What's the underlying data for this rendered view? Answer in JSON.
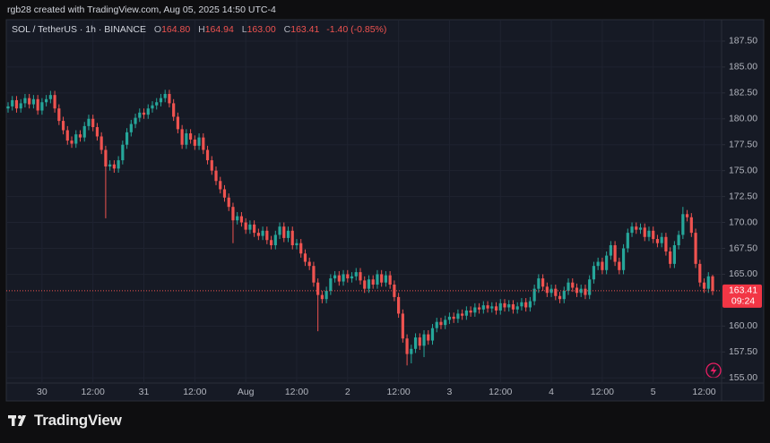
{
  "header": {
    "caption": "rgb28 created with TradingView.com, Aug 05, 2025 14:50 UTC-4"
  },
  "footer": {
    "brand": "TradingView"
  },
  "chart_data": {
    "type": "candlestick",
    "legend": {
      "symbol": "SOL / TetherUS · 1h · BINANCE",
      "items": [
        {
          "key": "O",
          "value": "164.80"
        },
        {
          "key": "H",
          "value": "164.94"
        },
        {
          "key": "L",
          "value": "163.00"
        },
        {
          "key": "C",
          "value": "163.41"
        }
      ],
      "change": "-1.40 (-0.85%)"
    },
    "countdown": "09:24",
    "up_color": "#26a69a",
    "down_color": "#ef5350",
    "grid": true,
    "ylim": [
      154.5,
      189.05
    ],
    "yticks": [
      {
        "value": 155,
        "label": "155.00"
      },
      {
        "value": 157.5,
        "label": "157.50"
      },
      {
        "value": 160,
        "label": "160.00"
      },
      {
        "value": 162.5,
        "label": "162.50"
      },
      {
        "value": 165,
        "label": "165.00"
      },
      {
        "value": 167.5,
        "label": "167.50"
      },
      {
        "value": 170,
        "label": "170.00"
      },
      {
        "value": 172.5,
        "label": "172.50"
      },
      {
        "value": 175,
        "label": "175.00"
      },
      {
        "value": 177.5,
        "label": "177.50"
      },
      {
        "value": 180,
        "label": "180.00"
      },
      {
        "value": 182.5,
        "label": "182.50"
      },
      {
        "value": 185,
        "label": "185.00"
      },
      {
        "value": 187.5,
        "label": "187.50"
      }
    ],
    "categories": [
      null,
      null,
      null,
      null,
      null,
      null,
      null,
      null,
      "30",
      null,
      null,
      null,
      null,
      null,
      null,
      null,
      null,
      null,
      null,
      null,
      "12:00",
      null,
      null,
      null,
      null,
      null,
      null,
      null,
      null,
      null,
      null,
      null,
      "31",
      null,
      null,
      null,
      null,
      null,
      null,
      null,
      null,
      null,
      null,
      null,
      "12:00",
      null,
      null,
      null,
      null,
      null,
      null,
      null,
      null,
      null,
      null,
      null,
      "Aug",
      null,
      null,
      null,
      null,
      null,
      null,
      null,
      null,
      null,
      null,
      null,
      "12:00",
      null,
      null,
      null,
      null,
      null,
      null,
      null,
      null,
      null,
      null,
      null,
      "2",
      null,
      null,
      null,
      null,
      null,
      null,
      null,
      null,
      null,
      null,
      null,
      "12:00",
      null,
      null,
      null,
      null,
      null,
      null,
      null,
      null,
      null,
      null,
      null,
      "3",
      null,
      null,
      null,
      null,
      null,
      null,
      null,
      null,
      null,
      null,
      null,
      "12:00",
      null,
      null,
      null,
      null,
      null,
      null,
      null,
      null,
      null,
      null,
      null,
      "4",
      null,
      null,
      null,
      null,
      null,
      null,
      null,
      null,
      null,
      null,
      null,
      "12:00",
      null,
      null,
      null,
      null,
      null,
      null,
      null,
      null,
      null,
      null,
      null,
      "5",
      null,
      null,
      null,
      null,
      null,
      null,
      null,
      null,
      null,
      null,
      null,
      "12:00",
      null,
      null
    ],
    "values": [
      [
        181.0,
        181.6,
        180.6,
        181.2
      ],
      [
        181.2,
        182.2,
        180.8,
        181.8
      ],
      [
        181.8,
        182.2,
        180.6,
        181.0
      ],
      [
        181.0,
        181.9,
        180.6,
        181.5
      ],
      [
        181.5,
        182.4,
        181.1,
        182.0
      ],
      [
        182.0,
        182.4,
        181.0,
        181.4
      ],
      [
        181.4,
        182.3,
        181.0,
        181.9
      ],
      [
        181.9,
        182.3,
        180.4,
        180.8
      ],
      [
        180.8,
        182.0,
        180.4,
        181.6
      ],
      [
        181.6,
        182.3,
        181.2,
        181.9
      ],
      [
        181.9,
        182.7,
        181.5,
        182.3
      ],
      [
        182.3,
        182.7,
        180.6,
        181.0
      ],
      [
        181.0,
        181.4,
        179.4,
        179.8
      ],
      [
        179.8,
        180.2,
        178.5,
        178.9
      ],
      [
        178.9,
        179.3,
        177.5,
        177.9
      ],
      [
        177.9,
        178.3,
        177.2,
        177.6
      ],
      [
        177.6,
        178.9,
        177.2,
        178.5
      ],
      [
        178.5,
        178.9,
        177.8,
        178.2
      ],
      [
        178.2,
        179.7,
        177.8,
        179.3
      ],
      [
        179.3,
        180.4,
        178.9,
        180.0
      ],
      [
        180.0,
        180.4,
        178.8,
        179.2
      ],
      [
        179.2,
        179.6,
        177.9,
        178.3
      ],
      [
        178.3,
        178.7,
        176.6,
        177.0
      ],
      [
        177.0,
        177.4,
        170.4,
        175.4
      ],
      [
        175.4,
        176.0,
        175.0,
        175.6
      ],
      [
        175.6,
        176.0,
        174.8,
        175.2
      ],
      [
        175.2,
        176.4,
        174.8,
        176.0
      ],
      [
        176.0,
        177.9,
        175.6,
        177.5
      ],
      [
        177.5,
        179.1,
        177.1,
        178.7
      ],
      [
        178.7,
        179.9,
        178.3,
        179.5
      ],
      [
        179.5,
        180.5,
        179.1,
        180.1
      ],
      [
        180.1,
        181.0,
        179.7,
        180.6
      ],
      [
        180.6,
        181.0,
        180.0,
        180.4
      ],
      [
        180.4,
        181.4,
        180.0,
        181.0
      ],
      [
        181.0,
        181.7,
        180.6,
        181.3
      ],
      [
        181.3,
        182.0,
        180.9,
        181.6
      ],
      [
        181.6,
        182.4,
        181.2,
        182.0
      ],
      [
        182.0,
        182.8,
        181.6,
        182.4
      ],
      [
        182.4,
        182.8,
        181.1,
        181.5
      ],
      [
        181.5,
        181.9,
        179.8,
        180.2
      ],
      [
        180.2,
        180.6,
        178.6,
        179.0
      ],
      [
        179.0,
        179.4,
        177.1,
        177.5
      ],
      [
        177.5,
        179.0,
        177.1,
        178.6
      ],
      [
        178.6,
        179.0,
        177.6,
        178.0
      ],
      [
        178.0,
        178.4,
        177.0,
        177.4
      ],
      [
        177.4,
        178.6,
        177.0,
        178.2
      ],
      [
        178.2,
        178.6,
        176.6,
        177.0
      ],
      [
        177.0,
        177.4,
        175.6,
        176.0
      ],
      [
        176.0,
        176.4,
        174.6,
        175.0
      ],
      [
        175.0,
        175.4,
        173.6,
        174.0
      ],
      [
        174.0,
        174.4,
        172.8,
        173.2
      ],
      [
        173.2,
        173.6,
        172.0,
        172.4
      ],
      [
        172.4,
        172.8,
        171.1,
        171.5
      ],
      [
        171.5,
        171.9,
        168.0,
        170.2
      ],
      [
        170.2,
        171.0,
        169.8,
        170.6
      ],
      [
        170.6,
        171.0,
        169.6,
        170.0
      ],
      [
        170.0,
        170.4,
        168.9,
        169.3
      ],
      [
        169.3,
        170.2,
        168.9,
        169.8
      ],
      [
        169.8,
        170.2,
        168.6,
        169.0
      ],
      [
        169.0,
        169.4,
        168.3,
        168.7
      ],
      [
        168.7,
        169.6,
        168.3,
        169.2
      ],
      [
        169.2,
        169.6,
        167.9,
        168.3
      ],
      [
        168.3,
        168.7,
        167.4,
        167.8
      ],
      [
        167.8,
        169.2,
        167.4,
        168.8
      ],
      [
        168.8,
        170.0,
        168.4,
        169.6
      ],
      [
        169.6,
        170.0,
        168.1,
        168.5
      ],
      [
        168.5,
        169.6,
        168.1,
        169.2
      ],
      [
        169.2,
        169.6,
        167.4,
        167.8
      ],
      [
        167.8,
        168.4,
        167.4,
        168.0
      ],
      [
        168.0,
        168.4,
        166.6,
        167.0
      ],
      [
        167.0,
        167.4,
        165.8,
        166.2
      ],
      [
        166.2,
        166.6,
        165.4,
        165.8
      ],
      [
        165.8,
        166.2,
        163.8,
        164.2
      ],
      [
        164.2,
        164.6,
        159.5,
        163.0
      ],
      [
        163.0,
        163.4,
        162.2,
        162.6
      ],
      [
        162.6,
        163.8,
        162.2,
        163.4
      ],
      [
        163.4,
        165.0,
        163.0,
        164.6
      ],
      [
        164.6,
        165.3,
        164.2,
        164.9
      ],
      [
        164.9,
        165.3,
        163.9,
        164.3
      ],
      [
        164.3,
        165.4,
        163.9,
        165.0
      ],
      [
        165.0,
        165.4,
        164.2,
        164.6
      ],
      [
        164.6,
        165.2,
        164.2,
        164.8
      ],
      [
        164.8,
        165.6,
        164.4,
        165.2
      ],
      [
        165.2,
        165.6,
        164.0,
        164.4
      ],
      [
        164.4,
        164.8,
        163.2,
        163.6
      ],
      [
        163.6,
        164.9,
        163.2,
        164.5
      ],
      [
        164.5,
        164.9,
        163.6,
        164.0
      ],
      [
        164.0,
        165.4,
        163.6,
        165.0
      ],
      [
        165.0,
        165.4,
        163.8,
        164.2
      ],
      [
        164.2,
        165.3,
        163.8,
        164.9
      ],
      [
        164.9,
        165.3,
        163.6,
        164.0
      ],
      [
        164.0,
        164.4,
        162.4,
        162.8
      ],
      [
        162.8,
        163.2,
        160.8,
        161.2
      ],
      [
        161.2,
        161.6,
        158.4,
        158.8
      ],
      [
        158.8,
        159.2,
        156.2,
        157.3
      ],
      [
        157.3,
        158.2,
        156.4,
        157.8
      ],
      [
        157.8,
        159.3,
        157.4,
        158.9
      ],
      [
        158.9,
        159.3,
        157.7,
        158.1
      ],
      [
        158.1,
        159.6,
        157.0,
        159.2
      ],
      [
        159.2,
        159.6,
        158.2,
        158.6
      ],
      [
        158.6,
        160.2,
        158.2,
        159.8
      ],
      [
        159.8,
        160.8,
        159.4,
        160.4
      ],
      [
        160.4,
        160.8,
        159.7,
        160.1
      ],
      [
        160.1,
        161.0,
        159.7,
        160.6
      ],
      [
        160.6,
        161.3,
        160.2,
        160.9
      ],
      [
        160.9,
        161.3,
        160.3,
        160.7
      ],
      [
        160.7,
        161.6,
        160.3,
        161.2
      ],
      [
        161.2,
        161.6,
        160.6,
        161.0
      ],
      [
        161.0,
        161.9,
        160.6,
        161.5
      ],
      [
        161.5,
        161.9,
        160.9,
        161.3
      ],
      [
        161.3,
        162.2,
        160.9,
        161.8
      ],
      [
        161.8,
        162.2,
        161.2,
        161.6
      ],
      [
        161.6,
        162.4,
        161.2,
        162.0
      ],
      [
        162.0,
        162.4,
        161.3,
        161.7
      ],
      [
        161.7,
        162.3,
        161.3,
        161.9
      ],
      [
        161.9,
        162.3,
        161.1,
        161.5
      ],
      [
        161.5,
        162.6,
        161.1,
        162.2
      ],
      [
        162.2,
        162.6,
        161.4,
        161.8
      ],
      [
        161.8,
        162.5,
        161.4,
        162.1
      ],
      [
        162.1,
        162.5,
        161.2,
        161.6
      ],
      [
        161.6,
        162.3,
        161.2,
        161.9
      ],
      [
        161.9,
        162.7,
        161.5,
        162.3
      ],
      [
        162.3,
        162.7,
        161.4,
        161.8
      ],
      [
        161.8,
        162.8,
        161.4,
        162.4
      ],
      [
        162.4,
        164.0,
        162.0,
        163.6
      ],
      [
        163.6,
        165.0,
        163.2,
        164.6
      ],
      [
        164.6,
        165.0,
        163.4,
        163.8
      ],
      [
        163.8,
        164.2,
        162.8,
        163.2
      ],
      [
        163.2,
        164.0,
        162.8,
        163.6
      ],
      [
        163.6,
        164.0,
        162.5,
        162.9
      ],
      [
        162.9,
        163.3,
        162.2,
        162.6
      ],
      [
        162.6,
        163.8,
        162.2,
        163.4
      ],
      [
        163.4,
        164.6,
        163.0,
        164.2
      ],
      [
        164.2,
        164.6,
        163.3,
        163.7
      ],
      [
        163.7,
        164.1,
        162.8,
        163.2
      ],
      [
        163.2,
        164.0,
        162.8,
        163.6
      ],
      [
        163.6,
        164.0,
        162.6,
        163.0
      ],
      [
        163.0,
        164.9,
        162.6,
        164.5
      ],
      [
        164.5,
        166.2,
        164.1,
        165.8
      ],
      [
        165.8,
        166.6,
        165.4,
        166.2
      ],
      [
        166.2,
        166.6,
        165.0,
        165.4
      ],
      [
        165.4,
        167.2,
        165.0,
        166.8
      ],
      [
        166.8,
        168.2,
        166.4,
        167.8
      ],
      [
        167.8,
        168.2,
        165.8,
        166.2
      ],
      [
        166.2,
        166.6,
        165.0,
        165.4
      ],
      [
        165.4,
        167.9,
        165.0,
        167.5
      ],
      [
        167.5,
        169.4,
        167.1,
        169.0
      ],
      [
        169.0,
        170.0,
        168.6,
        169.6
      ],
      [
        169.6,
        170.0,
        168.9,
        169.3
      ],
      [
        169.3,
        169.9,
        168.9,
        169.5
      ],
      [
        169.5,
        169.9,
        168.2,
        168.6
      ],
      [
        168.6,
        169.6,
        168.2,
        169.2
      ],
      [
        169.2,
        169.6,
        168.0,
        168.4
      ],
      [
        168.4,
        168.8,
        167.6,
        168.0
      ],
      [
        168.0,
        169.0,
        167.6,
        168.6
      ],
      [
        168.6,
        169.0,
        166.8,
        167.2
      ],
      [
        167.2,
        167.6,
        165.6,
        166.0
      ],
      [
        166.0,
        168.2,
        165.6,
        167.8
      ],
      [
        167.8,
        169.2,
        167.4,
        168.8
      ],
      [
        168.8,
        171.5,
        168.4,
        170.8
      ],
      [
        170.8,
        171.2,
        170.1,
        170.5
      ],
      [
        170.5,
        170.9,
        168.6,
        169.0
      ],
      [
        169.0,
        169.4,
        165.6,
        166.0
      ],
      [
        166.0,
        166.4,
        163.8,
        164.2
      ],
      [
        164.2,
        164.6,
        163.2,
        163.6
      ],
      [
        163.6,
        165.2,
        163.2,
        164.8
      ],
      [
        164.8,
        164.94,
        163.0,
        163.41
      ]
    ]
  }
}
